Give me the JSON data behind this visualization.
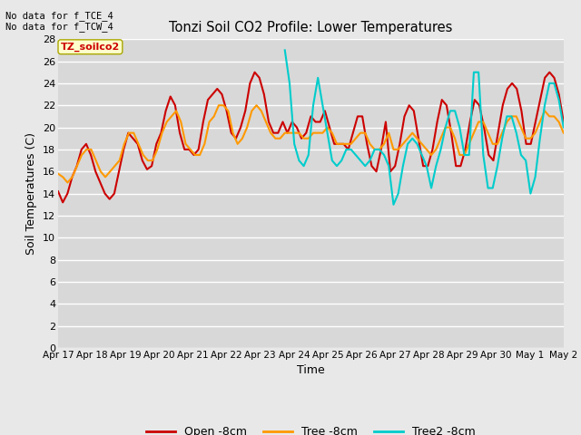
{
  "title": "Tonzi Soil CO2 Profile: Lower Temperatures",
  "xlabel": "Time",
  "ylabel": "Soil Temperatures (C)",
  "ylim": [
    0,
    28
  ],
  "yticks": [
    0,
    2,
    4,
    6,
    8,
    10,
    12,
    14,
    16,
    18,
    20,
    22,
    24,
    26,
    28
  ],
  "xtick_labels": [
    "Apr 17",
    "Apr 18",
    "Apr 19",
    "Apr 20",
    "Apr 21",
    "Apr 22",
    "Apr 23",
    "Apr 24",
    "Apr 25",
    "Apr 26",
    "Apr 27",
    "Apr 28",
    "Apr 29",
    "Apr 30",
    "May 1",
    "May 2"
  ],
  "background_color": "#e8e8e8",
  "plot_bg_color": "#d8d8d8",
  "grid_color": "#ffffff",
  "annotation_text": "No data for f_TCE_4\nNo data for f_TCW_4",
  "watermark_text": "TZ_soilco2",
  "legend_labels": [
    "Open -8cm",
    "Tree -8cm",
    "Tree2 -8cm"
  ],
  "legend_colors": [
    "#cc0000",
    "#ff9900",
    "#00cccc"
  ],
  "open_color": "#cc0000",
  "tree_color": "#ff9900",
  "tree2_color": "#00cccc",
  "line_width": 1.5,
  "open_data": [
    14.2,
    13.2,
    14.0,
    15.5,
    16.5,
    18.0,
    18.5,
    17.5,
    16.0,
    15.0,
    14.0,
    13.5,
    14.0,
    16.0,
    18.0,
    19.5,
    19.0,
    18.5,
    17.0,
    16.2,
    16.5,
    18.5,
    19.5,
    21.5,
    22.8,
    22.0,
    19.5,
    18.0,
    18.0,
    17.5,
    18.0,
    20.5,
    22.5,
    23.0,
    23.5,
    23.0,
    21.5,
    19.5,
    19.0,
    20.0,
    21.5,
    24.0,
    25.0,
    24.5,
    23.0,
    20.5,
    19.5,
    19.5,
    20.5,
    19.5,
    20.5,
    20.0,
    19.0,
    19.5,
    21.0,
    20.5,
    20.5,
    21.5,
    20.0,
    18.5,
    18.5,
    18.5,
    18.0,
    19.5,
    21.0,
    21.0,
    18.5,
    16.5,
    16.0,
    18.0,
    20.5,
    16.0,
    16.5,
    18.5,
    21.0,
    22.0,
    21.5,
    19.0,
    16.5,
    16.5,
    18.0,
    20.5,
    22.5,
    22.0,
    19.5,
    16.5,
    16.5,
    18.0,
    20.5,
    22.5,
    22.0,
    20.0,
    17.5,
    17.0,
    19.5,
    22.0,
    23.5,
    24.0,
    23.5,
    21.5,
    18.5,
    18.5,
    20.5,
    22.5,
    24.5,
    25.0,
    24.5,
    23.0,
    20.5
  ],
  "tree_data": [
    15.8,
    15.5,
    15.0,
    15.5,
    16.5,
    17.5,
    18.0,
    18.0,
    17.0,
    16.0,
    15.5,
    16.0,
    16.5,
    17.0,
    18.5,
    19.5,
    19.5,
    18.5,
    17.5,
    17.0,
    17.0,
    18.0,
    19.5,
    20.5,
    21.0,
    21.5,
    20.5,
    18.5,
    18.0,
    17.5,
    17.5,
    18.5,
    20.5,
    21.0,
    22.0,
    22.0,
    21.5,
    19.5,
    18.5,
    19.0,
    20.0,
    21.5,
    22.0,
    21.5,
    20.5,
    19.5,
    19.0,
    19.0,
    19.5,
    19.5,
    19.5,
    19.5,
    19.0,
    19.0,
    19.5,
    19.5,
    19.5,
    20.0,
    19.5,
    18.5,
    18.5,
    18.5,
    18.5,
    19.0,
    19.5,
    19.5,
    18.5,
    18.0,
    18.0,
    18.5,
    19.5,
    18.0,
    18.0,
    18.5,
    19.0,
    19.5,
    19.0,
    18.5,
    18.0,
    17.5,
    18.0,
    19.0,
    20.0,
    20.0,
    19.0,
    17.5,
    17.5,
    18.5,
    19.5,
    20.5,
    20.5,
    19.5,
    18.5,
    18.5,
    19.5,
    20.5,
    21.0,
    21.0,
    20.0,
    19.0,
    19.0,
    19.5,
    20.5,
    21.5,
    21.0,
    21.0,
    20.5,
    19.5
  ],
  "tree2_data": [
    null,
    null,
    null,
    null,
    null,
    null,
    null,
    null,
    null,
    null,
    null,
    null,
    null,
    null,
    null,
    null,
    null,
    null,
    null,
    null,
    null,
    null,
    null,
    null,
    null,
    null,
    null,
    null,
    null,
    null,
    null,
    null,
    null,
    null,
    null,
    null,
    null,
    null,
    null,
    null,
    null,
    null,
    null,
    null,
    null,
    null,
    null,
    null,
    27.0,
    24.0,
    18.5,
    17.0,
    16.5,
    17.5,
    22.0,
    24.5,
    22.0,
    19.5,
    17.0,
    16.5,
    17.0,
    18.0,
    18.0,
    17.5,
    17.0,
    16.5,
    17.0,
    18.0,
    18.0,
    17.5,
    16.5,
    13.0,
    14.0,
    16.5,
    18.5,
    19.0,
    18.5,
    17.5,
    16.5,
    14.5,
    16.5,
    18.0,
    20.0,
    21.5,
    21.5,
    20.0,
    17.5,
    17.5,
    25.0,
    25.0,
    17.5,
    14.5,
    14.5,
    16.5,
    19.0,
    21.0,
    21.0,
    19.5,
    17.5,
    17.0,
    14.0,
    15.5,
    19.0,
    22.0,
    24.0,
    24.0,
    22.5,
    20.0
  ]
}
